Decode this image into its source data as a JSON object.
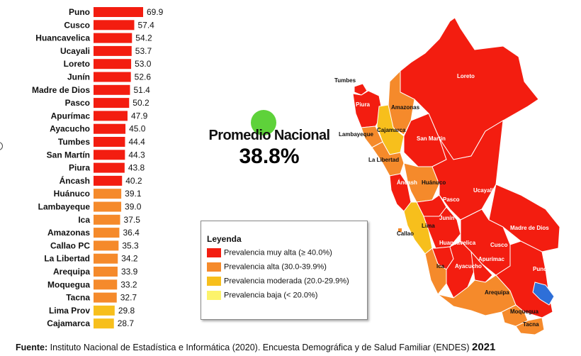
{
  "chart_data": {
    "type": "bar",
    "orientation": "horizontal",
    "categories": [
      "Puno",
      "Cusco",
      "Huancavelica",
      "Ucayali",
      "Loreto",
      "Junín",
      "Madre de Dios",
      "Pasco",
      "Apurímac",
      "Ayacucho",
      "Tumbes",
      "San Martín",
      "Piura",
      "Áncash",
      "Huánuco",
      "Lambayeque",
      "Ica",
      "Amazonas",
      "Callao PC",
      "La Libertad",
      "Arequipa",
      "Moquegua",
      "Tacna",
      "Lima Prov",
      "Cajamarca"
    ],
    "values": [
      69.9,
      57.4,
      54.2,
      53.7,
      53.0,
      52.6,
      51.4,
      50.2,
      47.9,
      45.0,
      44.4,
      44.3,
      43.8,
      40.2,
      39.1,
      39.0,
      37.5,
      36.4,
      35.3,
      34.2,
      33.9,
      33.2,
      32.7,
      29.8,
      28.7
    ],
    "value_labels": [
      "69.9",
      "57.4",
      "54.2",
      "53.7",
      "53.0",
      "52.6",
      "51.4",
      "50.2",
      "47.9",
      "45.0",
      "44.4",
      "44.3",
      "43.8",
      "40.2",
      "39.1",
      "39.0",
      "37.5",
      "36.4",
      "35.3",
      "34.2",
      "33.9",
      "33.2",
      "32.7",
      "29.8",
      "28.7"
    ],
    "data_labels": true,
    "grid": false,
    "legend_placement": "bottom-center"
  },
  "colors": {
    "very_high": "#f31d10",
    "high": "#f58a2b",
    "moderate": "#f7bf1c",
    "low": "#fcf36b",
    "lake": "#2e6fd8"
  },
  "average": {
    "label": "Promedio Nacional",
    "value": "38.8%"
  },
  "legend": {
    "title": "Leyenda",
    "items": [
      {
        "label": "Prevalencia muy alta (≥ 40.0%)",
        "color": "#f31d10"
      },
      {
        "label": "Prevalencia alta (30.0-39.9%)",
        "color": "#f58a2b"
      },
      {
        "label": "Prevalencia moderada (20.0-29.9%)",
        "color": "#f7bf1c"
      },
      {
        "label": "Prevalencia baja (< 20.0%)",
        "color": "#fcf36b"
      }
    ]
  },
  "map": {
    "labels": [
      "Loreto",
      "Tumbes",
      "Piura",
      "Amazonas",
      "Lambayeque",
      "Cajamarca",
      "San Martín",
      "La Libertad",
      "Áncash",
      "Huánuco",
      "Ucayali",
      "Pasco",
      "Junín",
      "Lima",
      "Callao",
      "Madre de Dios",
      "Huancavelica",
      "Cusco",
      "Apurímac",
      "Ica",
      "Ayacucho",
      "Puno",
      "Arequipa",
      "Moquegua",
      "Tacna"
    ]
  },
  "source": {
    "prefix": "Fuente:",
    "text": " Instituto Nacional de Estadística e Informática (2020). Encuesta Demográfica y de Salud Familiar (ENDES) ",
    "year": "2021"
  }
}
